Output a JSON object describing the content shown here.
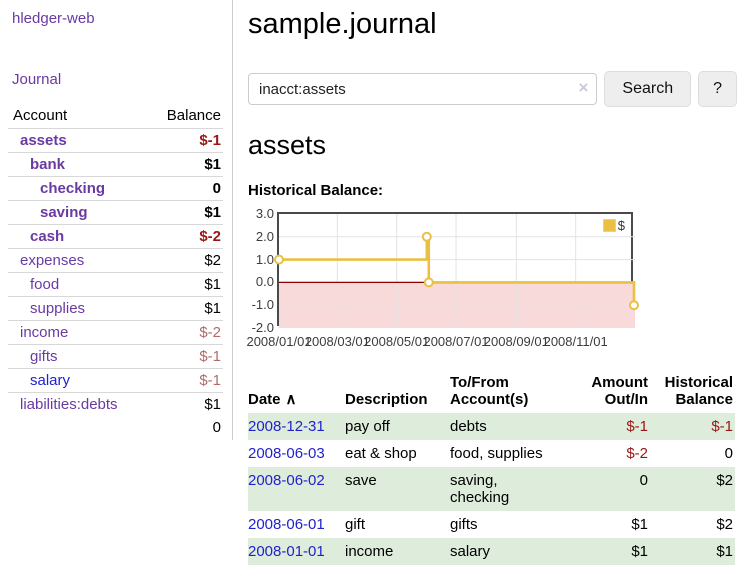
{
  "colors": {
    "link_purple": "#6a3aa2",
    "link_blue": "#2222cc",
    "negative_strong": "#9a1616",
    "negative_faded": "#b26b6b",
    "chart_line_gold": "#e9c044",
    "chart_negative_region": "#f9dada",
    "chart_zero_line": "#8b0000",
    "row_stripe_green": "#ddecdb"
  },
  "sidebar": {
    "app_title": "hledger-web",
    "nav": {
      "journal_label": "Journal"
    },
    "accounts_table": {
      "headers": {
        "account": "Account",
        "balance": "Balance"
      },
      "rows": [
        {
          "name": "assets",
          "depth": 0,
          "bold": true,
          "balance": "$-1",
          "negative": true,
          "link": "purple"
        },
        {
          "name": "bank",
          "depth": 1,
          "bold": true,
          "balance": "$1",
          "negative": false,
          "link": "purple"
        },
        {
          "name": "checking",
          "depth": 2,
          "bold": true,
          "balance": "0",
          "negative": false,
          "link": "purple"
        },
        {
          "name": "saving",
          "depth": 2,
          "bold": true,
          "balance": "$1",
          "negative": false,
          "link": "purple"
        },
        {
          "name": "cash",
          "depth": 1,
          "bold": true,
          "balance": "$-2",
          "negative": true,
          "link": "purple"
        },
        {
          "name": "expenses",
          "depth": 0,
          "bold": false,
          "balance": "$2",
          "negative": false,
          "link": "purple"
        },
        {
          "name": "food",
          "depth": 1,
          "bold": false,
          "balance": "$1",
          "negative": false,
          "link": "purple"
        },
        {
          "name": "supplies",
          "depth": 1,
          "bold": false,
          "balance": "$1",
          "negative": false,
          "link": "purple"
        },
        {
          "name": "income",
          "depth": 0,
          "bold": false,
          "balance": "$-2",
          "negative": true,
          "link": "purple"
        },
        {
          "name": "gifts",
          "depth": 1,
          "bold": false,
          "balance": "$-1",
          "negative": true,
          "link": "purple"
        },
        {
          "name": "salary",
          "depth": 1,
          "bold": false,
          "balance": "$-1",
          "negative": true,
          "link": "blue"
        },
        {
          "name": "liabilities:debts",
          "depth": 0,
          "bold": false,
          "balance": "$1",
          "negative": false,
          "link": "purple"
        }
      ],
      "total": "0"
    }
  },
  "header": {
    "title": "sample.journal"
  },
  "search": {
    "query": "inacct:assets",
    "clear_icon": "×",
    "search_label": "Search",
    "help_label": "?"
  },
  "account_page": {
    "heading": "assets",
    "chart_title": "Historical Balance:"
  },
  "chart_data": {
    "type": "line",
    "step": "after",
    "title": "Historical Balance:",
    "series": [
      {
        "name": "$",
        "color": "#e9c044",
        "points": [
          {
            "date": "2008-01-01",
            "value": 1
          },
          {
            "date": "2008-06-01",
            "value": 2
          },
          {
            "date": "2008-06-03",
            "value": 0
          },
          {
            "date": "2008-12-31",
            "value": -1
          }
        ]
      }
    ],
    "x_ticks": [
      "2008/01/01",
      "2008/03/01",
      "2008/05/01",
      "2008/07/01",
      "2008/09/01",
      "2008/11/01"
    ],
    "x_range": [
      "2008-01-01",
      "2009-01-01"
    ],
    "y_ticks": [
      3.0,
      2.0,
      1.0,
      0.0,
      -1.0,
      -2.0
    ],
    "ylim": [
      -2,
      3
    ],
    "grid": true,
    "legend_position": "top-right",
    "negative_region_color": "#f9dada",
    "zero_line_color": "#8b0000",
    "grid_color": "#e3e3e3"
  },
  "register_table": {
    "headers": {
      "date": "Date",
      "sort_icon": "∧",
      "description": "Description",
      "accounts": "To/From\nAccount(s)",
      "amount": "Amount\nOut/In",
      "balance": "Historical\nBalance"
    },
    "rows": [
      {
        "date": "2008-12-31",
        "description": "pay off",
        "accounts": "debts",
        "amount": "$-1",
        "amount_negative": true,
        "balance": "$-1",
        "balance_negative": true,
        "shaded": true
      },
      {
        "date": "2008-06-03",
        "description": "eat & shop",
        "accounts": "food, supplies",
        "amount": "$-2",
        "amount_negative": true,
        "balance": "0",
        "balance_negative": false,
        "shaded": false
      },
      {
        "date": "2008-06-02",
        "description": "save",
        "accounts": "saving,\nchecking",
        "amount": "0",
        "amount_negative": false,
        "balance": "$2",
        "balance_negative": false,
        "shaded": true
      },
      {
        "date": "2008-06-01",
        "description": "gift",
        "accounts": "gifts",
        "amount": "$1",
        "amount_negative": false,
        "balance": "$2",
        "balance_negative": false,
        "shaded": false
      },
      {
        "date": "2008-01-01",
        "description": "income",
        "accounts": "salary",
        "amount": "$1",
        "amount_negative": false,
        "balance": "$1",
        "balance_negative": false,
        "shaded": true
      }
    ]
  }
}
